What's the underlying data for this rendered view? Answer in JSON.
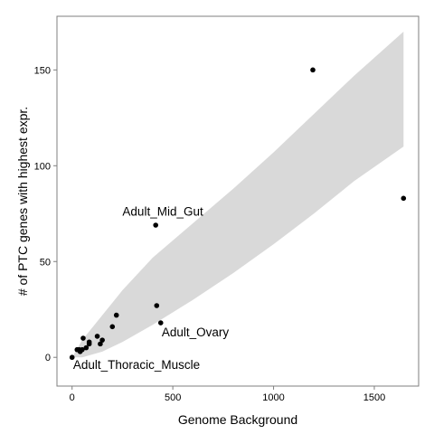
{
  "chart_data": {
    "type": "scatter",
    "title": "",
    "xlabel": "Genome Background",
    "ylabel": "# of PTC genes with highest expr.",
    "xlim": [
      -75,
      1720
    ],
    "ylim": [
      -15,
      178
    ],
    "xticks": [
      0,
      500,
      1000,
      1500
    ],
    "yticks": [
      0,
      50,
      100,
      150
    ],
    "xtick_labels": [
      "0",
      "500",
      "1000",
      "1500"
    ],
    "ytick_labels": [
      "0",
      "50",
      "100",
      "150"
    ],
    "grid": false,
    "legend": "none",
    "colors": {
      "points": "#000000",
      "band": "#d9d9d9",
      "frame": "#7f7f7f"
    },
    "points": [
      {
        "x": 0,
        "y": 0
      },
      {
        "x": 25,
        "y": 4
      },
      {
        "x": 35,
        "y": 4
      },
      {
        "x": 40,
        "y": 3
      },
      {
        "x": 50,
        "y": 4
      },
      {
        "x": 55,
        "y": 10
      },
      {
        "x": 70,
        "y": 5
      },
      {
        "x": 85,
        "y": 8
      },
      {
        "x": 85,
        "y": 7
      },
      {
        "x": 125,
        "y": 11
      },
      {
        "x": 140,
        "y": 7
      },
      {
        "x": 150,
        "y": 9
      },
      {
        "x": 200,
        "y": 16
      },
      {
        "x": 220,
        "y": 22
      },
      {
        "x": 415,
        "y": 69
      },
      {
        "x": 420,
        "y": 27
      },
      {
        "x": 440,
        "y": 18
      },
      {
        "x": 1195,
        "y": 150
      },
      {
        "x": 1645,
        "y": 83
      }
    ],
    "band": {
      "x": [
        0,
        50,
        150,
        250,
        400,
        600,
        800,
        1000,
        1200,
        1400,
        1645
      ],
      "lower": [
        0,
        0,
        3,
        8,
        17,
        30,
        44,
        59,
        75,
        92,
        110
      ],
      "upper": [
        0,
        9,
        22,
        35,
        52,
        70,
        88,
        107,
        127,
        147,
        170
      ]
    },
    "annotations": [
      {
        "text": "Adult_Mid_Gut",
        "x": 250,
        "y": 74,
        "anchor": "start"
      },
      {
        "text": "Adult_Ovary",
        "x": 445,
        "y": 11,
        "anchor": "start"
      },
      {
        "text": "Adult_Thoracic_Muscle",
        "x": 5,
        "y": -6,
        "anchor": "start"
      }
    ]
  }
}
